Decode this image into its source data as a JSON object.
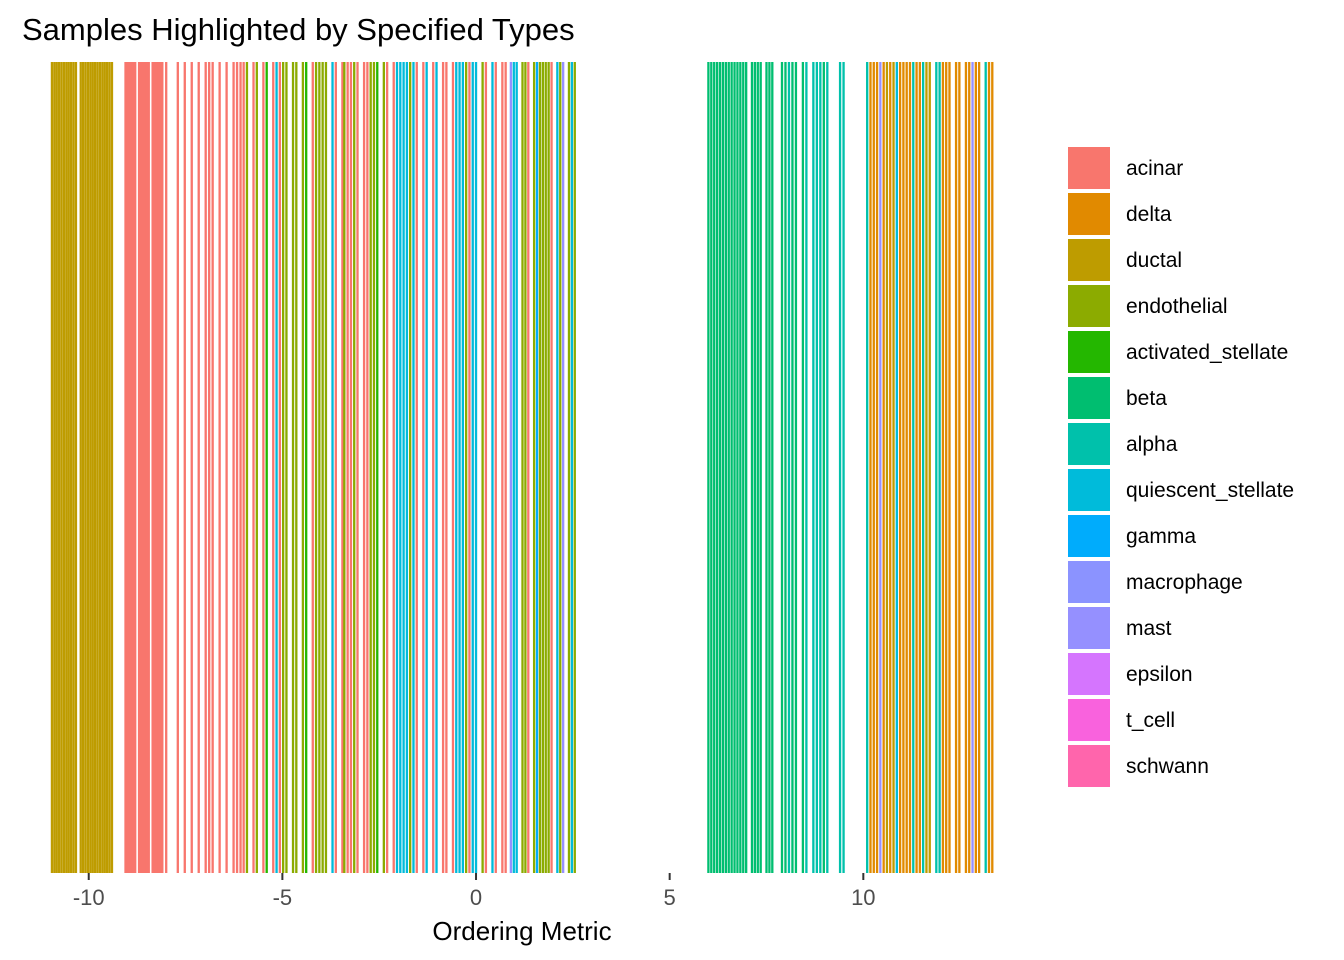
{
  "chart_data": {
    "type": "bar",
    "title": "Samples Highlighted by Specified Types",
    "xlabel": "Ordering Metric",
    "ylabel": "",
    "xlim": [
      -11.0,
      13.4
    ],
    "x_ticks": [
      {
        "value": -10,
        "label": "-10"
      },
      {
        "value": -5,
        "label": "-5"
      },
      {
        "value": 0,
        "label": "0"
      },
      {
        "value": 5,
        "label": "5"
      },
      {
        "value": 10,
        "label": "10"
      }
    ],
    "grid": false,
    "legend_position": "right",
    "legend": [
      {
        "name": "acinar",
        "color": "#F8766D"
      },
      {
        "name": "delta",
        "color": "#E18A00"
      },
      {
        "name": "ductal",
        "color": "#BE9C00"
      },
      {
        "name": "endothelial",
        "color": "#8CAB00"
      },
      {
        "name": "activated_stellate",
        "color": "#24B700"
      },
      {
        "name": "beta",
        "color": "#00BE70"
      },
      {
        "name": "alpha",
        "color": "#00C1AB"
      },
      {
        "name": "quiescent_stellate",
        "color": "#00BBDA"
      },
      {
        "name": "gamma",
        "color": "#00ACFC"
      },
      {
        "name": "macrophage",
        "color": "#8B93FF"
      },
      {
        "name": "mast",
        "color": "#9590FF"
      },
      {
        "name": "epsilon",
        "color": "#D575FE"
      },
      {
        "name": "t_cell",
        "color": "#F962DD"
      },
      {
        "name": "schwann",
        "color": "#FF65AC"
      }
    ],
    "bar_width": 0.06,
    "segments": [
      {
        "type": "ductal",
        "start": -10.95,
        "end": -9.35,
        "step": 0.062,
        "gap_every": 4
      },
      {
        "type": "acinar",
        "start": -9.05,
        "end": -8.0,
        "step": 0.05,
        "gap_every": 7
      },
      {
        "type": "acinar",
        "start": -7.7,
        "end": -6.0,
        "step": 0.09,
        "gap_every": 2
      },
      {
        "type": "mix_ae",
        "start": -6.0,
        "end": -3.4,
        "step": 0.085,
        "gap_every": 3
      },
      {
        "type": "mix_aq",
        "start": -3.4,
        "end": 0.9,
        "step": 0.085,
        "gap_every": 3
      },
      {
        "type": "mix_end",
        "start": 0.9,
        "end": 2.6,
        "step": 0.075,
        "gap_every": 4
      },
      {
        "type": "beta",
        "start": 6.0,
        "end": 7.7,
        "step": 0.075,
        "gap_every": 5
      },
      {
        "type": "mix_ab",
        "start": 7.9,
        "end": 9.1,
        "step": 0.09,
        "gap_every": 3
      },
      {
        "type": "alpha",
        "start": 9.4,
        "end": 9.5,
        "step": 0.09,
        "gap_every": 9
      },
      {
        "type": "mix_tail",
        "start": 10.1,
        "end": 13.35,
        "step": 0.085,
        "gap_every": 3
      }
    ]
  }
}
